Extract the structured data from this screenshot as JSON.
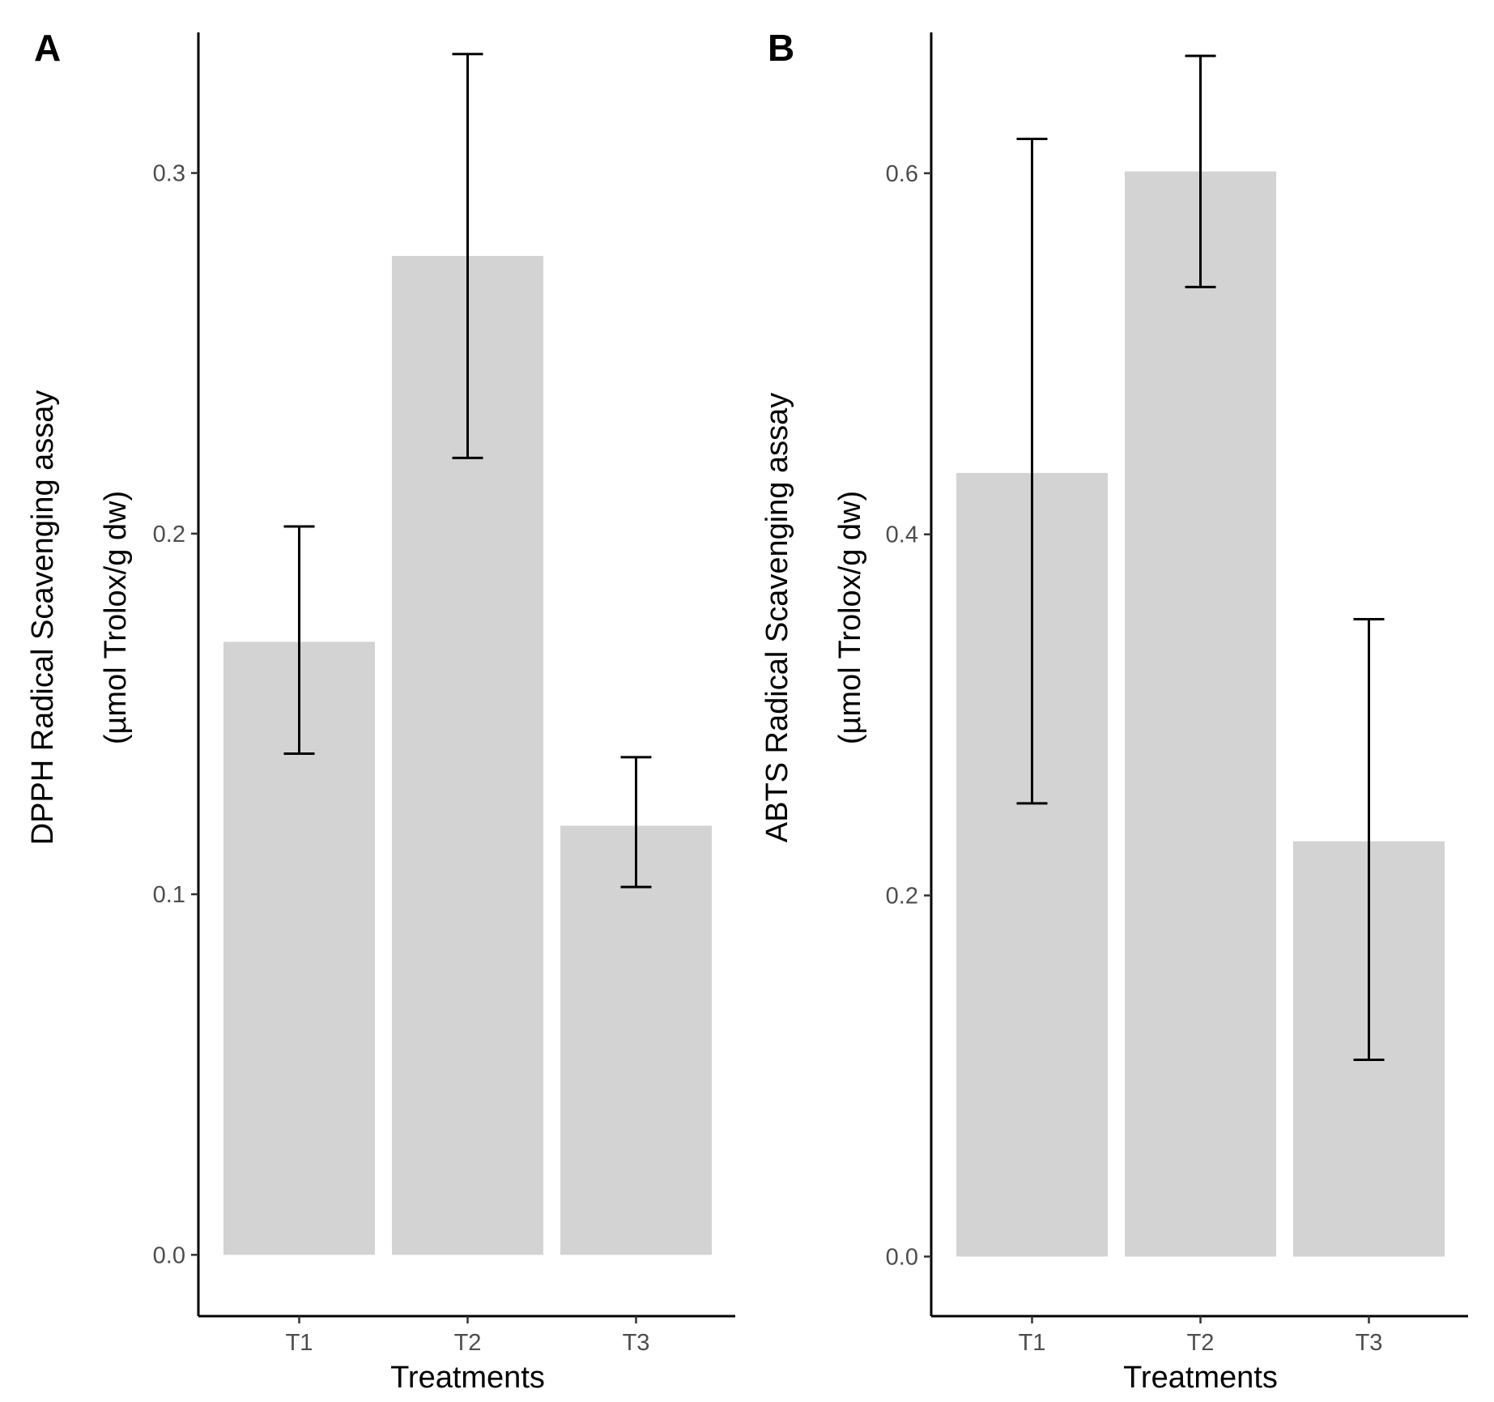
{
  "figure": {
    "description_panels": [
      "A",
      "B"
    ]
  },
  "chart_data": [
    {
      "type": "bar",
      "panel_label": "A",
      "categories": [
        "T1",
        "T2",
        "T3"
      ],
      "values": [
        0.17,
        0.277,
        0.119
      ],
      "error_low": [
        0.139,
        0.221,
        0.102
      ],
      "error_high": [
        0.202,
        0.333,
        0.138
      ],
      "ylim": [
        -0.017,
        0.339
      ],
      "yticks": [
        0.0,
        0.1,
        0.2,
        0.3
      ],
      "ytick_labels": [
        "0.0",
        "0.1",
        "0.2",
        "0.3"
      ],
      "xlabel": "Treatments",
      "ylabel_line1": "DPPH Radical Scavenging assay",
      "ylabel_line2": "(µmol Trolox/g dw)",
      "grid": false,
      "bar_color": "#d3d3d3"
    },
    {
      "type": "bar",
      "panel_label": "B",
      "categories": [
        "T1",
        "T2",
        "T3"
      ],
      "values": [
        0.434,
        0.601,
        0.23
      ],
      "error_low": [
        0.251,
        0.537,
        0.109
      ],
      "error_high": [
        0.619,
        0.665,
        0.353
      ],
      "ylim": [
        -0.033,
        0.678
      ],
      "yticks": [
        0.0,
        0.2,
        0.4,
        0.6
      ],
      "ytick_labels": [
        "0.0",
        "0.2",
        "0.4",
        "0.6"
      ],
      "xlabel": "Treatments",
      "ylabel_line1": "ABTS Radical Scavenging assay",
      "ylabel_line2": "(µmol Trolox/g dw)",
      "grid": false,
      "bar_color": "#d3d3d3"
    }
  ]
}
